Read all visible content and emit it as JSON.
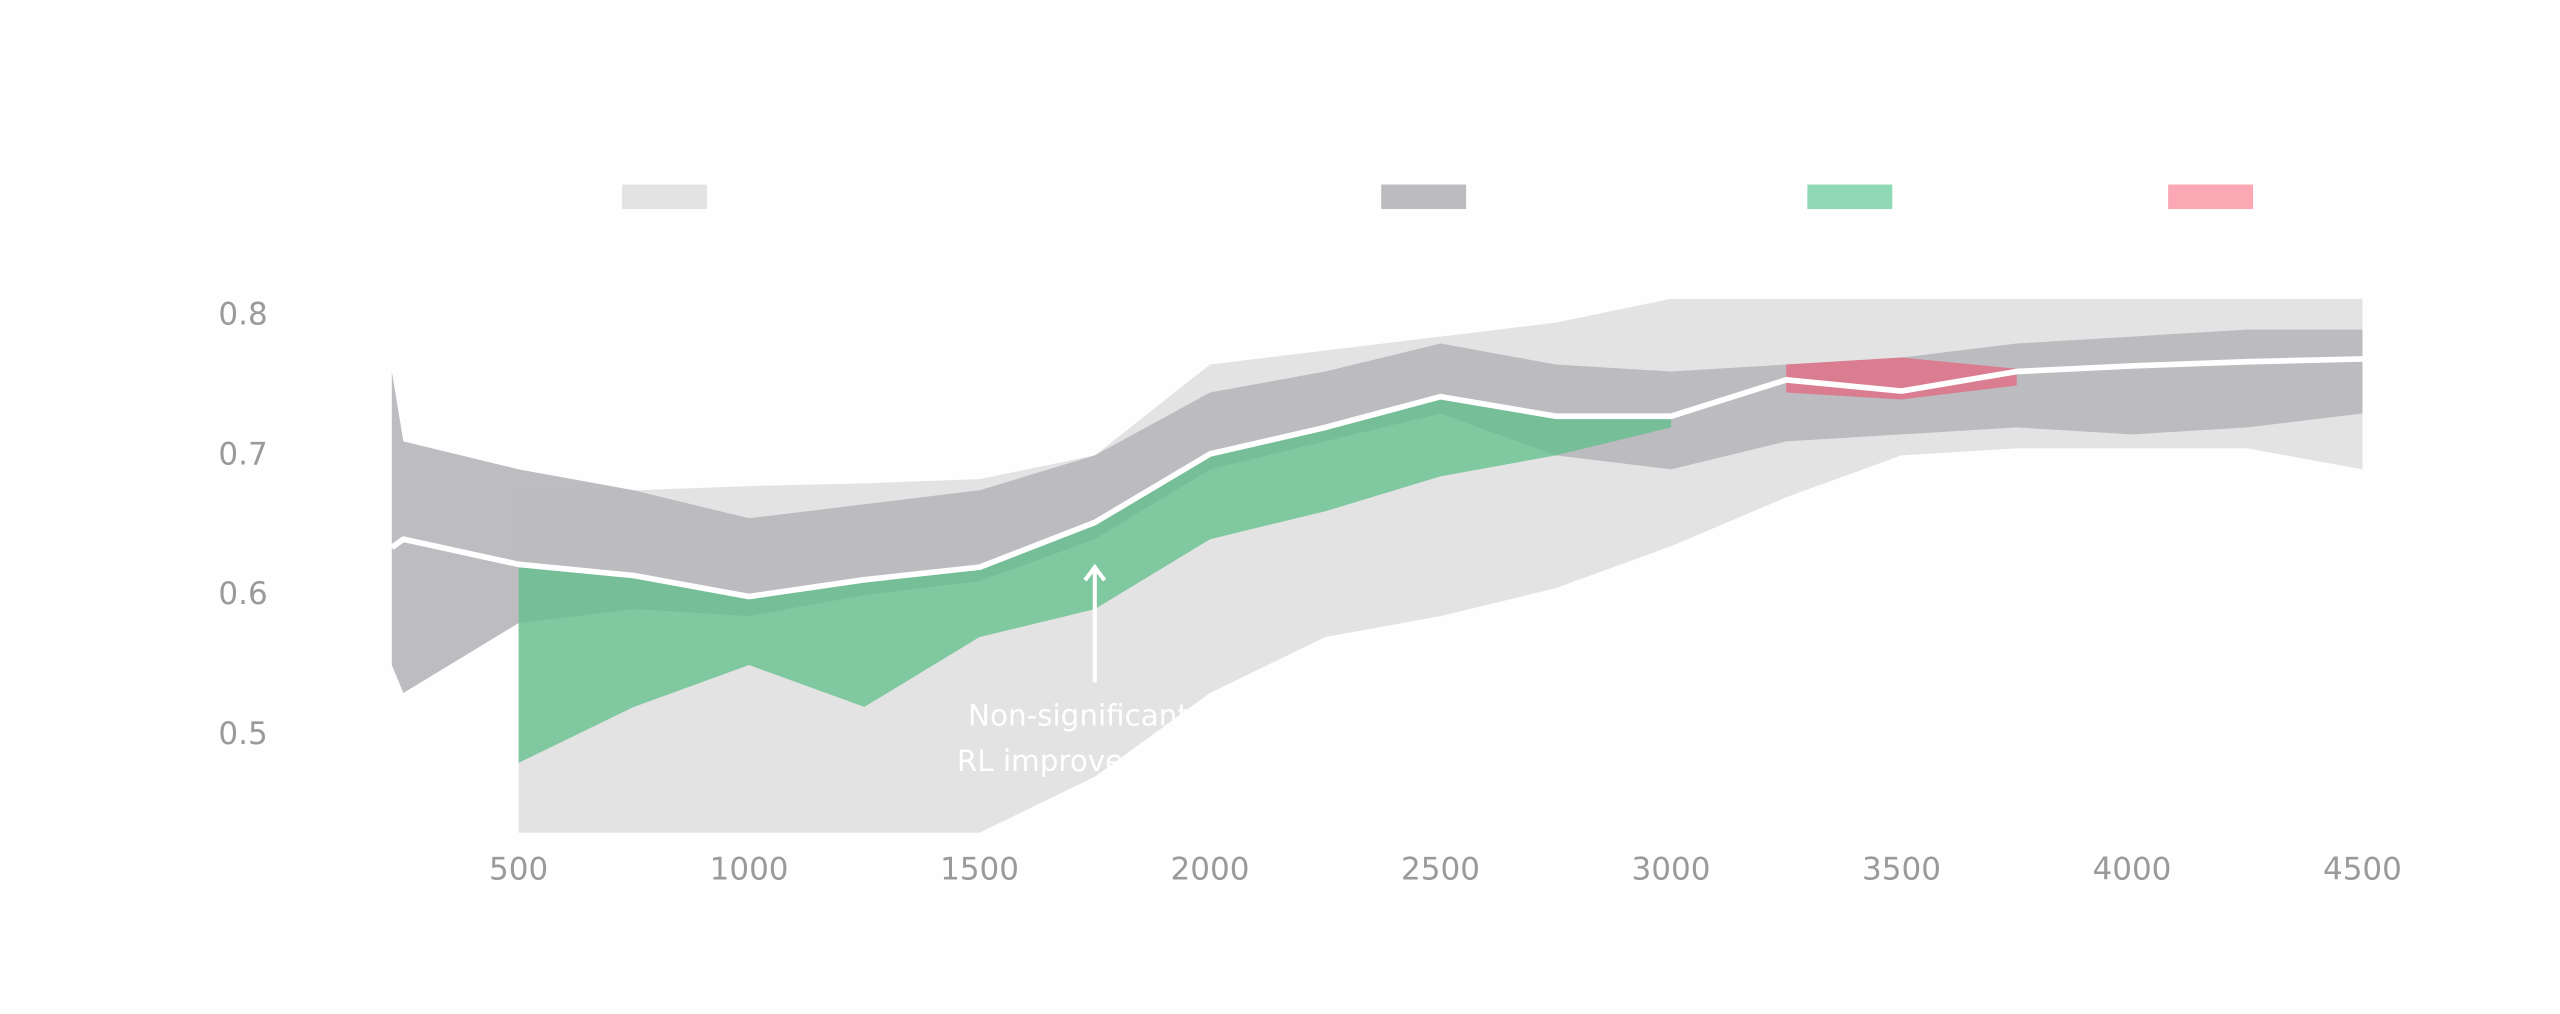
{
  "chart_data": {
    "type": "band-line",
    "x": [
      225,
      250,
      500,
      750,
      1000,
      1250,
      1500,
      1750,
      2000,
      2250,
      2500,
      2750,
      3000,
      3250,
      3500,
      3750,
      4000,
      4250,
      4500
    ],
    "series": [
      {
        "color": "#e3e3e3",
        "low": [
          null,
          null,
          0.43,
          0.43,
          0.43,
          0.43,
          0.43,
          0.47,
          0.53,
          0.57,
          0.585,
          0.605,
          0.635,
          0.67,
          0.7,
          0.705,
          0.705,
          0.705,
          0.69
        ],
        "high": [
          null,
          null,
          0.675,
          0.675,
          0.678,
          0.68,
          0.683,
          0.7,
          0.765,
          0.775,
          0.785,
          0.795,
          0.812,
          0.812,
          0.812,
          0.812,
          0.812,
          0.812,
          0.812
        ]
      },
      {
        "color": "#bcbbc0",
        "low": [
          0.55,
          0.53,
          0.58,
          0.59,
          0.585,
          0.6,
          0.61,
          0.64,
          0.69,
          0.71,
          0.73,
          0.7,
          0.69,
          0.71,
          0.715,
          0.72,
          0.715,
          0.72,
          0.73
        ],
        "high": [
          0.76,
          0.71,
          0.69,
          0.675,
          0.655,
          0.665,
          0.675,
          0.7,
          0.745,
          0.76,
          0.78,
          0.765,
          0.76,
          0.765,
          0.77,
          0.78,
          0.785,
          0.79,
          0.79
        ]
      },
      {
        "color": "#8fdab5",
        "low": [
          null,
          null,
          0.48,
          0.52,
          0.55,
          0.52,
          0.57,
          0.59,
          0.64,
          0.66,
          0.685,
          0.7,
          0.72,
          null,
          null,
          null,
          null,
          null,
          null
        ],
        "high": [
          null,
          null,
          0.62,
          0.614,
          0.599,
          0.611,
          0.62,
          0.652,
          0.701,
          0.72,
          0.742,
          0.728,
          0.728,
          null,
          null,
          null,
          null,
          null,
          null
        ]
      },
      {
        "color": "#fca7b4",
        "low": [
          null,
          null,
          null,
          null,
          null,
          null,
          null,
          null,
          null,
          null,
          null,
          null,
          null,
          0.745,
          0.74,
          0.75,
          null,
          null,
          null
        ],
        "high": [
          null,
          null,
          null,
          null,
          null,
          null,
          null,
          null,
          null,
          null,
          null,
          null,
          null,
          0.765,
          0.77,
          0.762,
          null,
          null,
          null
        ]
      }
    ],
    "line": {
      "color": "#ffffff",
      "values": [
        0.634,
        0.64,
        0.622,
        0.614,
        0.599,
        0.611,
        0.62,
        0.652,
        0.701,
        0.72,
        0.742,
        0.728,
        0.728,
        0.754,
        0.746,
        0.76,
        0.764,
        0.767,
        0.769
      ]
    },
    "annotation": {
      "text": [
        "Non-significant",
        "RL improvement"
      ],
      "x": 1750,
      "y": 0.62
    },
    "xlim": [
      225,
      4500
    ],
    "xticks": [
      500,
      1000,
      1500,
      2000,
      2500,
      3000,
      3500,
      4000,
      4500
    ],
    "ylim": [
      0.43,
      0.812
    ],
    "yticks": [
      0.5,
      0.6,
      0.7,
      0.8
    ]
  }
}
